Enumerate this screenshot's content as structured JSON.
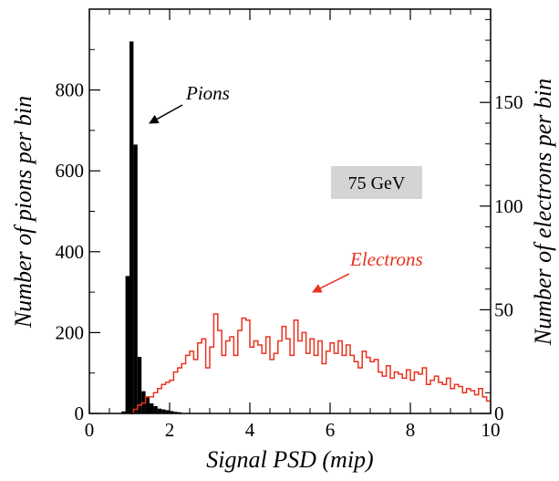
{
  "chart_data": {
    "type": "bar",
    "xlabel": "Signal PSD (mip)",
    "ylabel": "Number of pions per bin",
    "y2label": "Number of electrons per bin",
    "xlim": [
      0,
      10
    ],
    "ylim": [
      0,
      1000
    ],
    "y2lim": [
      0,
      195
    ],
    "xticks": [
      0,
      2,
      4,
      6,
      8,
      10
    ],
    "yticks": [
      0,
      200,
      400,
      600,
      800
    ],
    "y2ticks": [
      0,
      50,
      100,
      150
    ],
    "bin_width": 0.1,
    "series": [
      {
        "name": "Pions",
        "axis": "left",
        "style": "filled",
        "color": "#000000",
        "x": [
          0.8,
          0.9,
          1.0,
          1.1,
          1.2,
          1.3,
          1.4,
          1.5,
          1.6,
          1.7,
          1.8,
          1.9,
          2.0,
          2.1,
          2.2
        ],
        "values": [
          5,
          340,
          920,
          665,
          140,
          55,
          40,
          25,
          18,
          12,
          10,
          8,
          6,
          4,
          3
        ]
      },
      {
        "name": "Electrons",
        "axis": "right",
        "style": "step",
        "color": "#e8321e",
        "x": [
          1.0,
          1.1,
          1.2,
          1.3,
          1.4,
          1.5,
          1.6,
          1.7,
          1.8,
          1.9,
          2.0,
          2.1,
          2.2,
          2.3,
          2.4,
          2.5,
          2.6,
          2.7,
          2.8,
          2.9,
          3.0,
          3.1,
          3.2,
          3.3,
          3.4,
          3.5,
          3.6,
          3.7,
          3.8,
          3.9,
          4.0,
          4.1,
          4.2,
          4.3,
          4.4,
          4.5,
          4.6,
          4.7,
          4.8,
          4.9,
          5.0,
          5.1,
          5.2,
          5.3,
          5.4,
          5.5,
          5.6,
          5.7,
          5.8,
          5.9,
          6.0,
          6.1,
          6.2,
          6.3,
          6.4,
          6.5,
          6.6,
          6.7,
          6.8,
          6.9,
          7.0,
          7.1,
          7.2,
          7.3,
          7.4,
          7.5,
          7.6,
          7.7,
          7.8,
          7.9,
          8.0,
          8.1,
          8.2,
          8.3,
          8.4,
          8.5,
          8.6,
          8.7,
          8.8,
          8.9,
          9.0,
          9.1,
          9.2,
          9.3,
          9.4,
          9.5,
          9.6,
          9.7,
          9.8,
          9.9
        ],
        "values": [
          0,
          2,
          4,
          5,
          8,
          8,
          10,
          12,
          14,
          15,
          16,
          20,
          22,
          24,
          28,
          30,
          26,
          34,
          36,
          22,
          32,
          48,
          40,
          28,
          35,
          37,
          28,
          40,
          46,
          45,
          32,
          35,
          33,
          29,
          37,
          26,
          29,
          35,
          42,
          36,
          28,
          45,
          35,
          39,
          29,
          36,
          28,
          35,
          24,
          30,
          34,
          29,
          35,
          28,
          33,
          28,
          25,
          22,
          30,
          27,
          25,
          26,
          20,
          18,
          23,
          17,
          20,
          19,
          17,
          21,
          16,
          20,
          19,
          22,
          14,
          16,
          18,
          15,
          14,
          17,
          12,
          14,
          13,
          10,
          12,
          11,
          9,
          12,
          8,
          6
        ]
      }
    ],
    "annotations": {
      "pions_label": "Pions",
      "electrons_label": "Electrons",
      "energy_label": "75 GeV"
    }
  },
  "colors": {
    "pions": "#000000",
    "electrons": "#e8321e",
    "label_box": "#d4d4d4"
  }
}
